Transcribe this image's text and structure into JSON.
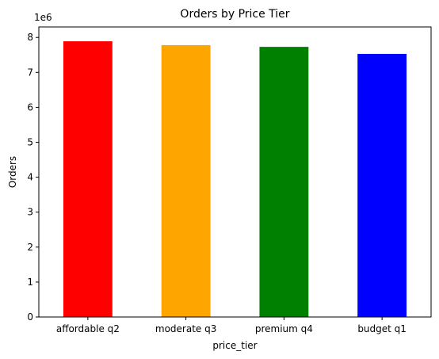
{
  "chart_data": {
    "type": "bar",
    "title": "Orders by Price Tier",
    "xlabel": "price_tier",
    "ylabel": "Orders",
    "scale_label": "1e6",
    "categories": [
      "affordable q2",
      "moderate q3",
      "premium q4",
      "budget q1"
    ],
    "values": [
      7890000,
      7780000,
      7730000,
      7530000
    ],
    "colors": [
      "#ff0000",
      "#ffa500",
      "#008000",
      "#0000ff"
    ],
    "ylim": [
      0,
      8300000
    ],
    "yticks": [
      0,
      1,
      2,
      3,
      4,
      5,
      6,
      7,
      8
    ],
    "grid": false,
    "legend": "none"
  }
}
